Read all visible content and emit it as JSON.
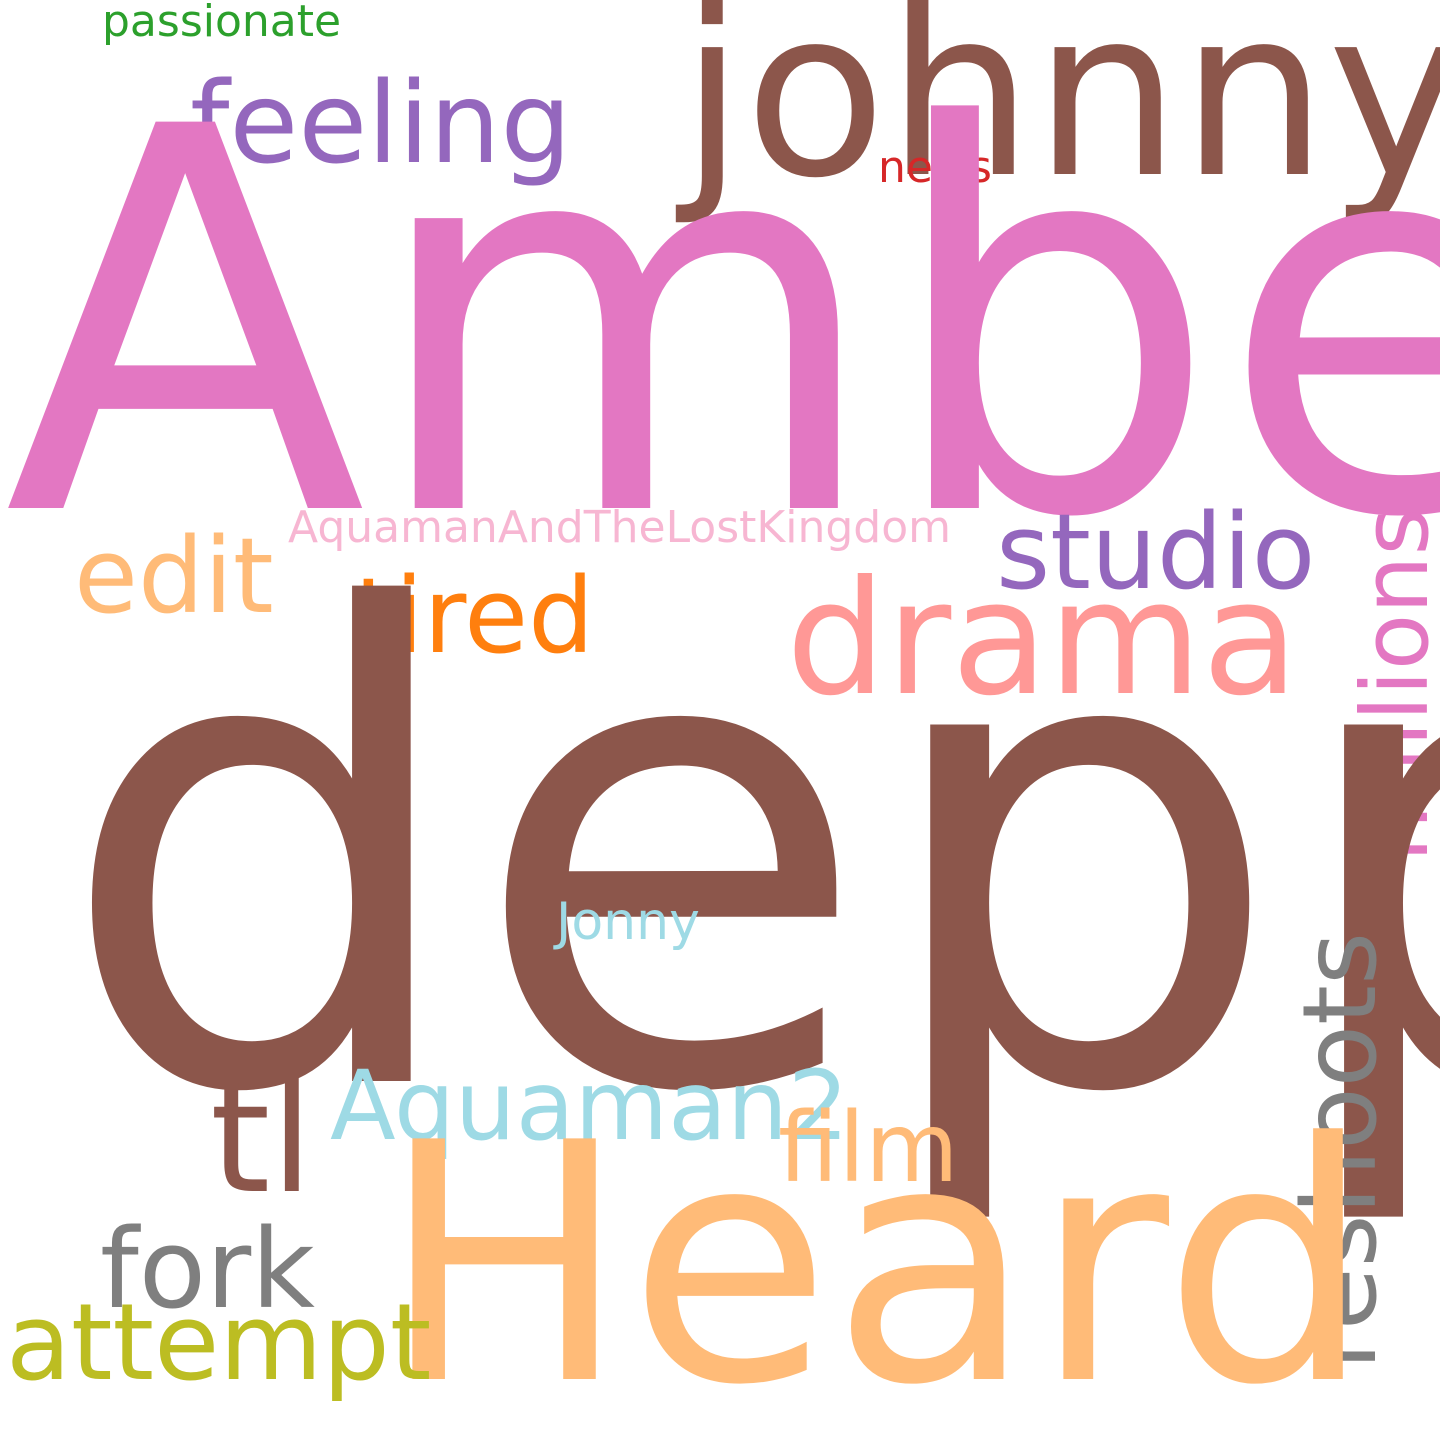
{
  "words": {
    "passionate": {
      "text": "passionate",
      "color": "#2ca02c"
    },
    "johnny": {
      "text": "johnny",
      "color": "#8c564b"
    },
    "feeling": {
      "text": "feeling",
      "color": "#9467bd"
    },
    "news": {
      "text": "news",
      "color": "#d62728"
    },
    "amber": {
      "text": "Amber",
      "color": "#e377c2"
    },
    "aquaman_lost_kingdom": {
      "text": "AquamanAndTheLostKingdom",
      "color": "#f7b6d2"
    },
    "studio": {
      "text": "studio",
      "color": "#9467bd"
    },
    "millions": {
      "text": "millions",
      "color": "#e377c2"
    },
    "edit": {
      "text": "edit",
      "color": "#ffbb78"
    },
    "tired": {
      "text": "tired",
      "color": "#ff7f0e"
    },
    "drama": {
      "text": "drama",
      "color": "#ff9896"
    },
    "depp": {
      "text": "depp",
      "color": "#8c564b"
    },
    "jonny": {
      "text": "Jonny",
      "color": "#9edae5"
    },
    "reshoots": {
      "text": "reshoots",
      "color": "#7f7f7f"
    },
    "tl": {
      "text": "tl",
      "color": "#8c564b"
    },
    "aquaman2": {
      "text": "Aquaman2",
      "color": "#9edae5"
    },
    "film": {
      "text": "film",
      "color": "#ffbb78"
    },
    "fork": {
      "text": "fork",
      "color": "#7f7f7f"
    },
    "heard": {
      "text": "Heard",
      "color": "#ffbb78"
    },
    "attempt": {
      "text": "attempt",
      "color": "#bcbd22"
    }
  }
}
